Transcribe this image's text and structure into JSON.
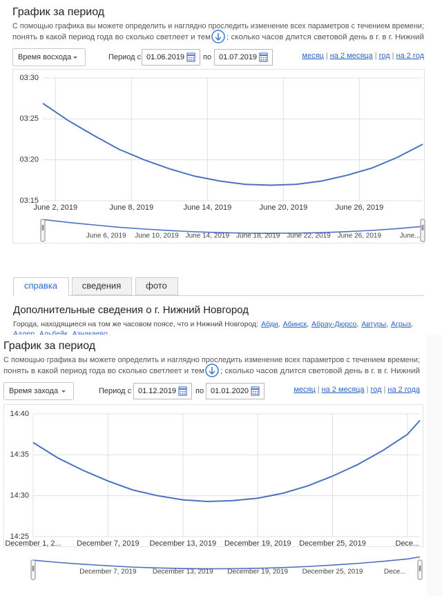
{
  "panels": [
    {
      "title": "График за период",
      "description": [
        "С помощью графика вы можете определить и наглядно проследить изменение всех параметров с течением времени;",
        "понять в какой период года во сколько светлеет и тем",
        "; сколько часов длится световой день в г. в г. Нижний"
      ],
      "parameter": "Время восхода",
      "period_from": "Период с",
      "date_from": "01.06.2019",
      "period_to": "по",
      "date_to": "01.07.2019",
      "range_links": [
        "месяц",
        "на 2 месяца",
        "год",
        "на 2 год"
      ],
      "link_separator": "|"
    },
    {
      "title": "График за период",
      "description": [
        "С помощью графика вы можете определить и наглядно проследить изменение всех параметров с течением времени;",
        "понять в какой период года во сколько светлеет и тем",
        "; сколько часов длится световой день в г. в г. Нижний"
      ],
      "parameter": "Время захода",
      "period_from": "Период с",
      "date_from": "01.12.2019",
      "period_to": "по",
      "date_to": "01.01.2020",
      "range_links": [
        "месяц",
        "на 2 месяца",
        "год",
        "на 2 года"
      ],
      "link_separator": "|"
    }
  ],
  "tabs": [
    "справка",
    "сведения",
    "фото"
  ],
  "info": {
    "heading": "Дополнительные сведения о г. Нижний Новгород",
    "text": "Города, находящиеся на том же часовом поясе, что и Нижний Новгород:",
    "cities": [
      "Абди",
      "Абинск",
      "Абрау-Дюрсо",
      "Автуры",
      "Агрыз",
      "Адлер",
      "Альбейк",
      "Азнакаево"
    ],
    "separator": ","
  },
  "chart_data": [
    {
      "type": "line",
      "x": [
        "2019-06-01",
        "2019-06-03",
        "2019-06-05",
        "2019-06-07",
        "2019-06-09",
        "2019-06-11",
        "2019-06-13",
        "2019-06-15",
        "2019-06-17",
        "2019-06-19",
        "2019-06-21",
        "2019-06-23",
        "2019-06-25",
        "2019-06-27",
        "2019-06-29",
        "2019-07-01"
      ],
      "series": [
        {
          "color": "#4a70c0",
          "values": [
            206.9,
            204.8,
            203.0,
            201.3,
            200.0,
            198.9,
            198.0,
            197.4,
            197.0,
            196.9,
            197.0,
            197.4,
            198.1,
            199.0,
            200.3,
            201.9
          ]
        }
      ],
      "xlim": [
        "2019-06-01",
        "2019-07-01"
      ],
      "xticks": [
        {
          "value": "2019-06-02",
          "label": "June 2, 2019"
        },
        {
          "value": "2019-06-08",
          "label": "June 8, 2019"
        },
        {
          "value": "2019-06-14",
          "label": "June 14, 2019"
        },
        {
          "value": "2019-06-20",
          "label": "June 20, 2019"
        },
        {
          "value": "2019-06-26",
          "label": "June 26, 2019"
        }
      ],
      "ylim": [
        195,
        210
      ],
      "yticks": [
        {
          "value": 195,
          "label": "03:15"
        },
        {
          "value": 200,
          "label": "03:20"
        },
        {
          "value": 205,
          "label": "03:25"
        },
        {
          "value": 210,
          "label": "03:30"
        }
      ],
      "navigator_ticks": [
        {
          "value": "2019-06-06",
          "label": "June 6, 2019"
        },
        {
          "value": "2019-06-10",
          "label": "June 10, 2019"
        },
        {
          "value": "2019-06-14",
          "label": "June 14, 2019"
        },
        {
          "value": "2019-06-18",
          "label": "June 18, 2019"
        },
        {
          "value": "2019-06-22",
          "label": "June 22, 2019"
        },
        {
          "value": "2019-06-26",
          "label": "June 26, 2019"
        },
        {
          "value": "2019-06-30",
          "label": "June..."
        }
      ],
      "grid": true
    },
    {
      "type": "line",
      "x": [
        "2019-12-01",
        "2019-12-03",
        "2019-12-05",
        "2019-12-07",
        "2019-12-09",
        "2019-12-11",
        "2019-12-13",
        "2019-12-15",
        "2019-12-17",
        "2019-12-19",
        "2019-12-21",
        "2019-12-23",
        "2019-12-25",
        "2019-12-27",
        "2019-12-29",
        "2019-12-31",
        "2020-01-01"
      ],
      "series": [
        {
          "color": "#4a70c0",
          "values": [
            876.5,
            874.6,
            873.1,
            871.8,
            870.7,
            870.0,
            869.5,
            869.3,
            869.4,
            869.7,
            870.3,
            871.2,
            872.4,
            873.8,
            875.5,
            877.5,
            879.2
          ]
        }
      ],
      "xlim": [
        "2019-12-01",
        "2020-01-01"
      ],
      "xticks": [
        {
          "value": "2019-12-01",
          "label": "December 1, 2..."
        },
        {
          "value": "2019-12-07",
          "label": "December 7, 2019"
        },
        {
          "value": "2019-12-13",
          "label": "December 13, 2019"
        },
        {
          "value": "2019-12-19",
          "label": "December 19, 2019"
        },
        {
          "value": "2019-12-25",
          "label": "December 25, 2019"
        },
        {
          "value": "2019-12-31",
          "label": "Dece..."
        }
      ],
      "ylim": [
        865,
        880
      ],
      "yticks": [
        {
          "value": 865,
          "label": "14:25"
        },
        {
          "value": 870,
          "label": "14:30"
        },
        {
          "value": 875,
          "label": "14:35"
        },
        {
          "value": 880,
          "label": "14:40"
        }
      ],
      "navigator_ticks": [
        {
          "value": "2019-12-07",
          "label": "December 7, 2019"
        },
        {
          "value": "2019-12-13",
          "label": "December 13, 2019"
        },
        {
          "value": "2019-12-19",
          "label": "December 19, 2019"
        },
        {
          "value": "2019-12-25",
          "label": "December 25, 2019"
        },
        {
          "value": "2019-12-30",
          "label": "Dece..."
        }
      ],
      "grid": true
    }
  ]
}
